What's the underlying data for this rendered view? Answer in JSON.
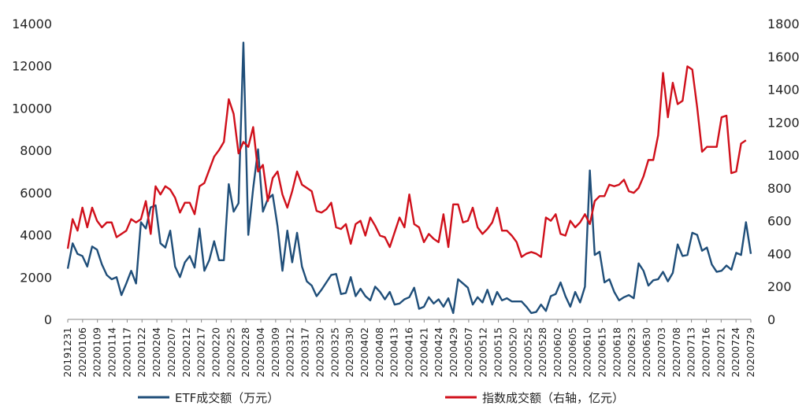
{
  "chart_data": {
    "type": "line",
    "title": "",
    "left_axis": {
      "ylim": [
        0,
        14000
      ],
      "ticks": [
        "0",
        "2000",
        "4000",
        "6000",
        "8000",
        "10000",
        "12000",
        "14000"
      ]
    },
    "right_axis": {
      "ylim": [
        0,
        1800
      ],
      "ticks": [
        "0",
        "200",
        "400",
        "600",
        "800",
        "1000",
        "1200",
        "1400",
        "1600",
        "1800"
      ]
    },
    "x_tick_labels": [
      "20191231",
      "20200106",
      "20200109",
      "20200114",
      "20200117",
      "20200122",
      "20200204",
      "20200207",
      "20200212",
      "20200217",
      "20200220",
      "20200225",
      "20200228",
      "20200304",
      "20200309",
      "20200312",
      "20200317",
      "20200320",
      "20200325",
      "20200330",
      "20200402",
      "20200408",
      "20200413",
      "20200416",
      "20200421",
      "20200424",
      "20200429",
      "20200507",
      "20200512",
      "20200515",
      "20200520",
      "20200525",
      "20200528",
      "20200602",
      "20200605",
      "20200610",
      "20200615",
      "20200618",
      "20200623",
      "20200630",
      "20200703",
      "20200708",
      "20200713",
      "20200716",
      "20200721",
      "20200724",
      "20200729"
    ],
    "n_points": 141,
    "grid": false,
    "legend_position": "bottom",
    "series": [
      {
        "name": "ETF成交额（万元）",
        "axis": "left",
        "color": "#1f4e79",
        "values": [
          2400,
          3600,
          3100,
          3000,
          2500,
          3450,
          3300,
          2600,
          2100,
          1900,
          2000,
          1150,
          1700,
          2300,
          1700,
          4600,
          4300,
          5300,
          5400,
          3600,
          3400,
          4200,
          2500,
          2000,
          2700,
          3000,
          2450,
          4300,
          2300,
          2800,
          3700,
          2800,
          2800,
          6400,
          5100,
          5500,
          13100,
          4000,
          6200,
          8050,
          5100,
          5700,
          5900,
          4400,
          2300,
          4200,
          2700,
          4100,
          2500,
          1800,
          1600,
          1100,
          1400,
          1750,
          2100,
          2150,
          1200,
          1250,
          2000,
          1100,
          1450,
          1100,
          900,
          1550,
          1300,
          950,
          1300,
          700,
          750,
          950,
          1050,
          1500,
          500,
          600,
          1050,
          750,
          950,
          600,
          1000,
          300,
          1900,
          1700,
          1500,
          700,
          1050,
          800,
          1400,
          700,
          1300,
          900,
          1000,
          850,
          850,
          850,
          600,
          300,
          350,
          700,
          400,
          1100,
          1200,
          1750,
          1100,
          600,
          1300,
          800,
          1550,
          7050,
          3050,
          3200,
          1750,
          1900,
          1300,
          900,
          1050,
          1150,
          1000,
          2650,
          2300,
          1600,
          1850,
          1900,
          2250,
          1800,
          2200,
          3550,
          3000,
          3050,
          4100,
          4000,
          3250,
          3400,
          2600,
          2250,
          2300,
          2550,
          2350,
          3150,
          3050,
          4600,
          3100
        ]
      },
      {
        "name": "指数成交额（右轴，亿元）",
        "axis": "right",
        "color": "#d0101b",
        "values": [
          430,
          610,
          540,
          680,
          560,
          680,
          600,
          560,
          590,
          590,
          500,
          520,
          540,
          610,
          590,
          610,
          720,
          520,
          810,
          760,
          810,
          790,
          740,
          650,
          710,
          710,
          640,
          810,
          830,
          910,
          990,
          1030,
          1080,
          1340,
          1250,
          1010,
          1080,
          1050,
          1170,
          900,
          940,
          720,
          860,
          900,
          760,
          680,
          780,
          900,
          820,
          800,
          780,
          660,
          650,
          670,
          710,
          560,
          550,
          580,
          460,
          580,
          600,
          510,
          620,
          570,
          510,
          500,
          440,
          530,
          620,
          560,
          760,
          580,
          560,
          470,
          520,
          490,
          470,
          640,
          440,
          700,
          700,
          590,
          600,
          680,
          560,
          520,
          550,
          590,
          680,
          540,
          540,
          510,
          470,
          380,
          400,
          410,
          400,
          380,
          620,
          600,
          640,
          520,
          510,
          600,
          560,
          590,
          640,
          580,
          720,
          750,
          750,
          820,
          810,
          820,
          850,
          780,
          770,
          800,
          870,
          970,
          970,
          1120,
          1500,
          1230,
          1440,
          1310,
          1330,
          1540,
          1520,
          1290,
          1020,
          1050,
          1050,
          1050,
          1230,
          1240,
          890,
          900,
          1070,
          1090
        ]
      }
    ]
  }
}
